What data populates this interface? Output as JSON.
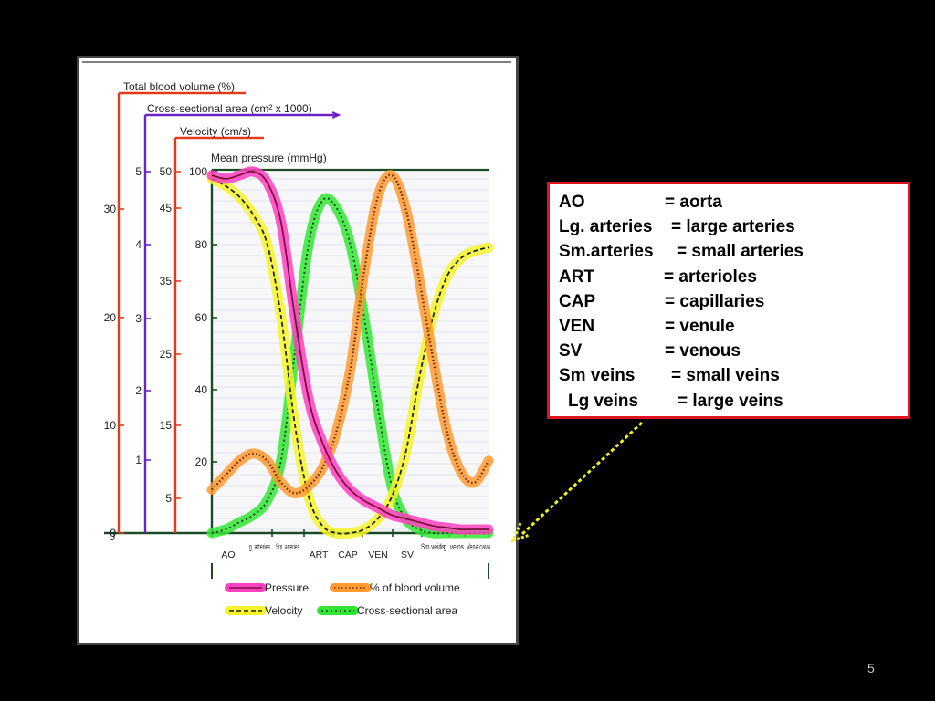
{
  "colors": {
    "pressure": "#ff40c0",
    "blood_volume": "#ff9a30",
    "velocity": "#f4f42a",
    "cross_section": "#33e633",
    "axis_total_blood_volume": "#e23b1c",
    "axis_cross_section": "#6b22c8",
    "axis_velocity": "#e23b1c",
    "box_border": "#e0141e",
    "pointer": "#f0f020"
  },
  "chart_data": {
    "type": "line",
    "axes": [
      {
        "label": "Total blood volume (%)",
        "ticks": [
          "30",
          "20",
          "10",
          "0"
        ]
      },
      {
        "label": "Cross-sectional area (cm² x 1000)",
        "ticks": [
          "5",
          "4",
          "3",
          "2",
          "1"
        ]
      },
      {
        "label": "Velocity (cm/s)",
        "ticks": [
          "50",
          "45",
          "35",
          "25",
          "15",
          "5"
        ]
      },
      {
        "label": "Mean pressure (mmHg)",
        "ticks": [
          "100",
          "80",
          "60",
          "40",
          "20"
        ],
        "ylim": [
          0,
          100
        ]
      }
    ],
    "categories": [
      "AO",
      "Lg. arteries",
      "Sm. arteries",
      "ART",
      "CAP",
      "VEN",
      "SV",
      "Sm veins",
      "Lg. veins",
      "Vena cava"
    ],
    "x": [
      0,
      0.05,
      0.1,
      0.15,
      0.2,
      0.25,
      0.3,
      0.35,
      0.4,
      0.45,
      0.5,
      0.55,
      0.6,
      0.65,
      0.7,
      0.75,
      0.8,
      0.85,
      0.9,
      0.95,
      1
    ],
    "series": [
      {
        "name": "Pressure",
        "values": [
          99,
          98,
          99,
          100,
          97,
          86,
          60,
          37,
          25,
          17,
          12,
          9,
          7,
          5,
          4,
          3,
          2,
          1.5,
          1,
          1,
          1
        ]
      },
      {
        "name": "% of blood volume",
        "values": [
          12,
          16,
          20,
          22,
          20,
          14,
          11,
          13,
          18,
          28,
          45,
          72,
          93,
          99,
          90,
          70,
          48,
          28,
          17,
          14,
          20
        ]
      },
      {
        "name": "Velocity",
        "values": [
          98,
          96,
          93,
          88,
          80,
          60,
          30,
          10,
          2,
          0,
          0,
          1,
          4,
          10,
          22,
          43,
          60,
          71,
          76,
          78,
          79
        ]
      },
      {
        "name": "Cross-sectional area",
        "values": [
          0,
          1,
          3,
          5,
          9,
          20,
          50,
          80,
          92,
          90,
          80,
          60,
          35,
          13,
          4,
          1,
          0,
          0,
          0,
          0,
          0
        ]
      }
    ],
    "legend": [
      "Pressure",
      "% of blood volume",
      "Velocity",
      "Cross-sectional area"
    ]
  },
  "abbreviations": [
    {
      "abbr": "AO",
      "def": "= aorta"
    },
    {
      "abbr": "Lg. arteries",
      "def": "= large arteries"
    },
    {
      "abbr": "Sm.arteries",
      "def": "= small arteries"
    },
    {
      "abbr": "ART",
      "def": "= arterioles"
    },
    {
      "abbr": "CAP",
      "def": "= capillaries"
    },
    {
      "abbr": "VEN",
      "def": "= venule"
    },
    {
      "abbr": "SV",
      "def": "= venous"
    },
    {
      "abbr": "Sm veins",
      "def": "= small veins"
    },
    {
      "abbr": "Lg  veins",
      "def": "= large veins"
    }
  ],
  "page_number": "5"
}
